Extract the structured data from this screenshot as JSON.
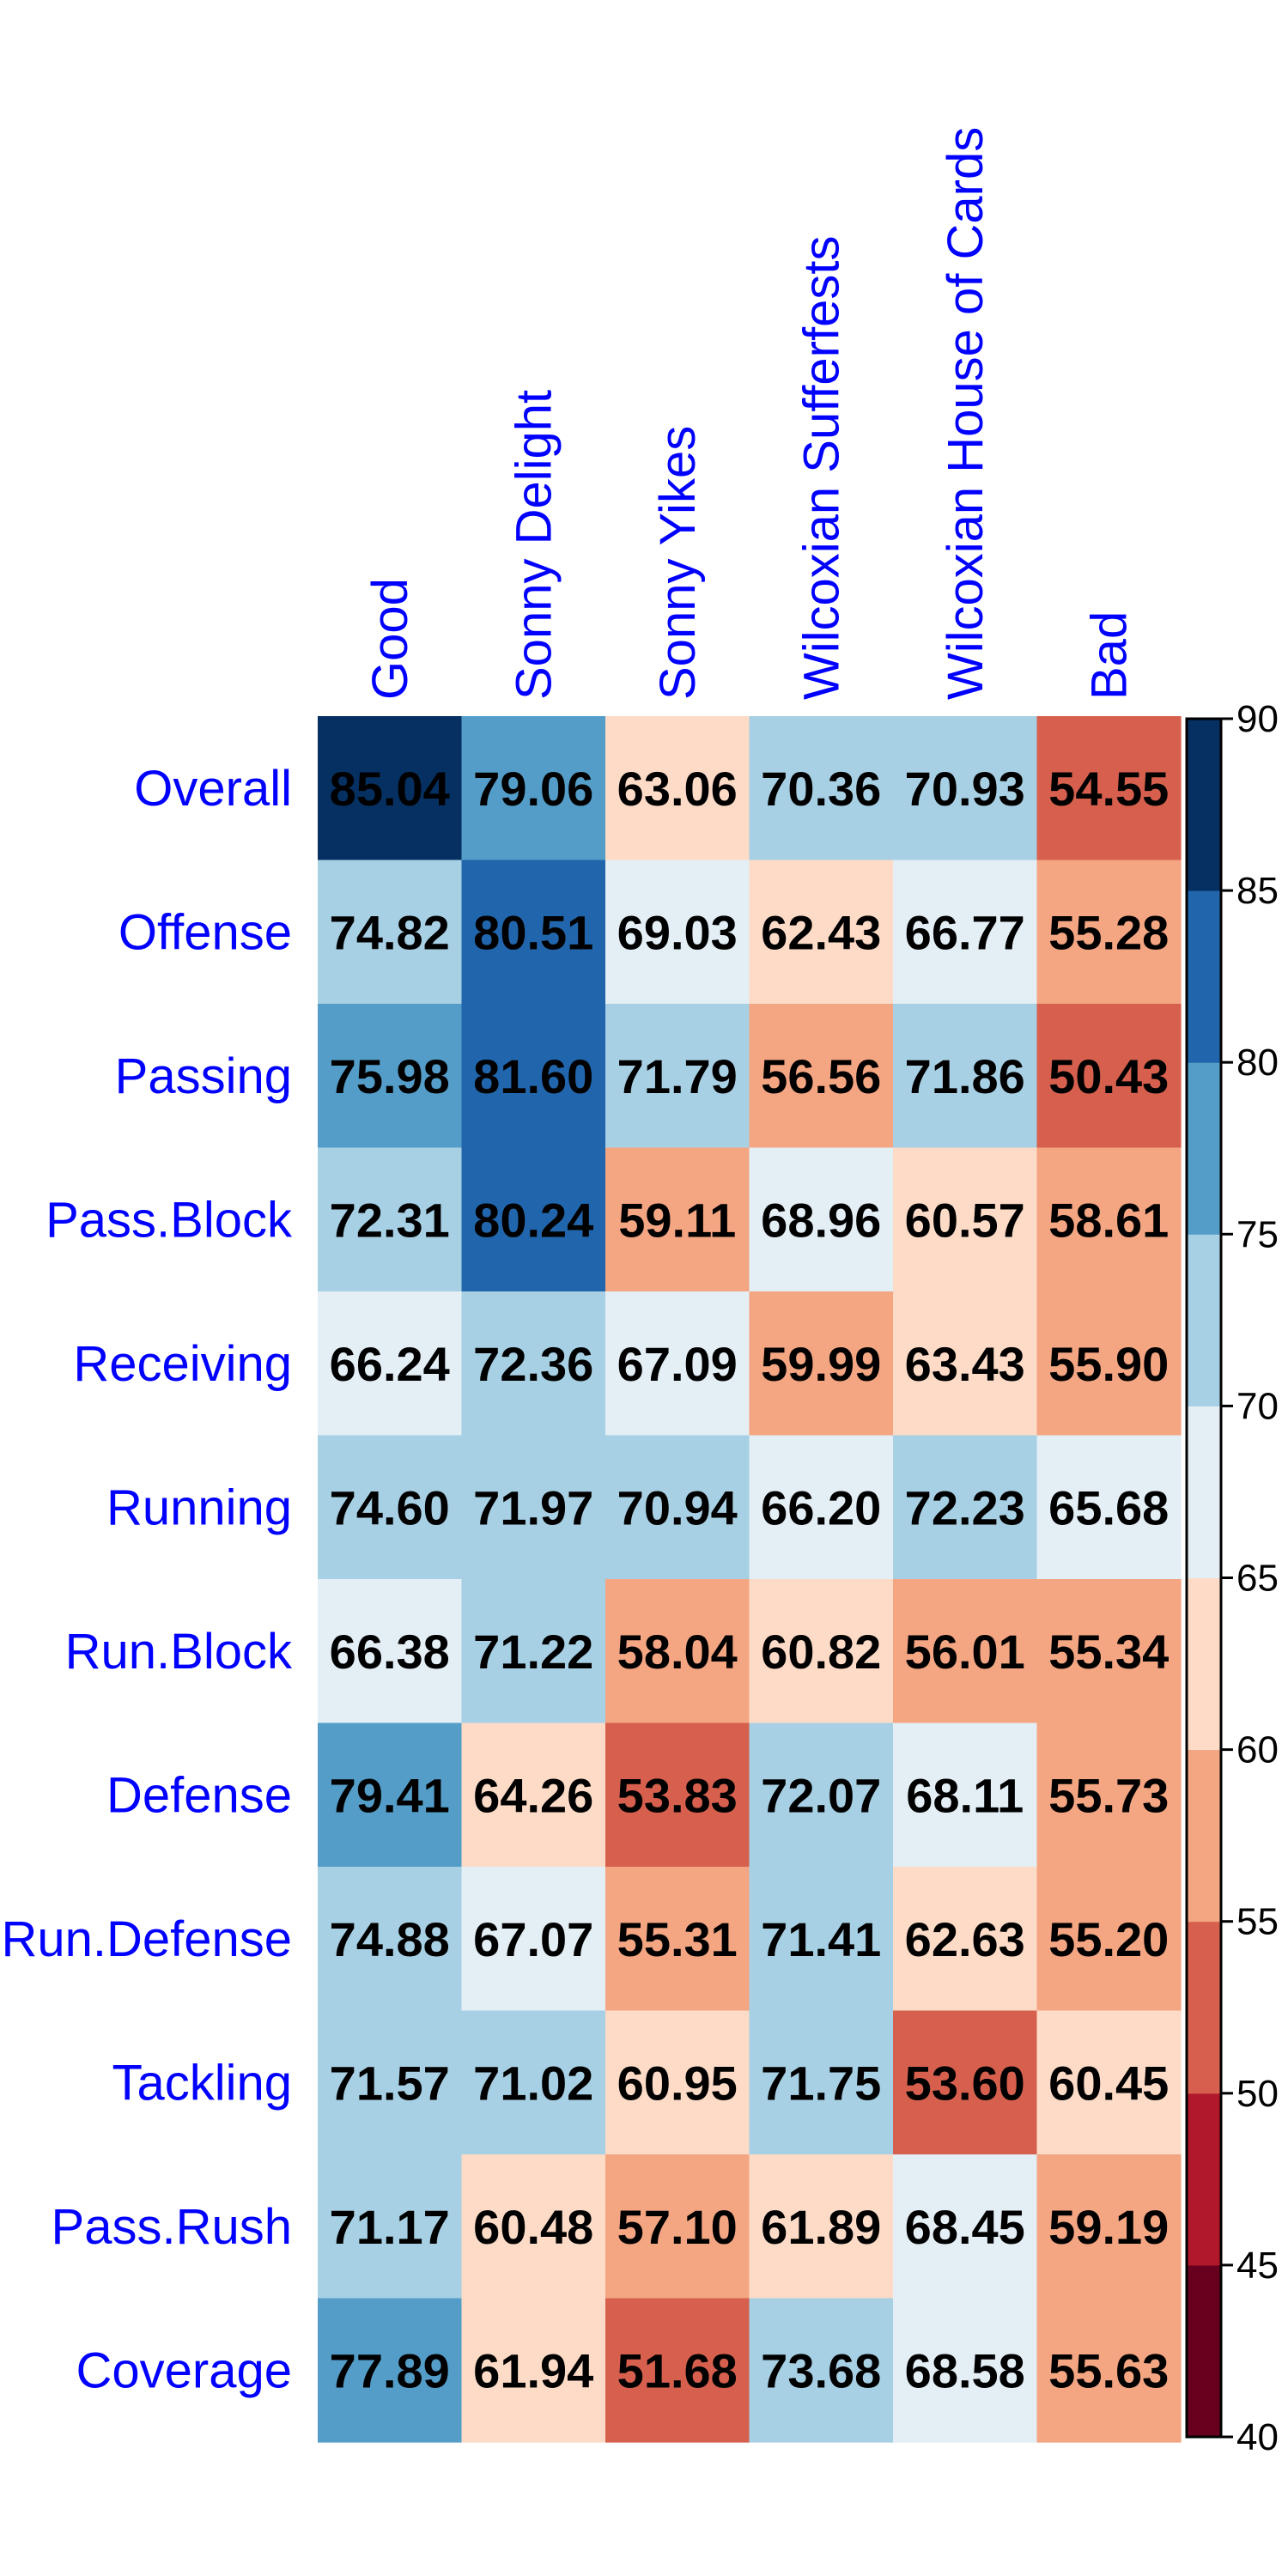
{
  "chart_data": {
    "type": "heatmap",
    "columns": [
      "Good",
      "Sonny Delight",
      "Sonny Yikes",
      "Wilcoxian Sufferfests",
      "Wilcoxian House of Cards",
      "Bad"
    ],
    "rows": [
      "Overall",
      "Offense",
      "Passing",
      "Pass.Block",
      "Receiving",
      "Running",
      "Run.Block",
      "Defense",
      "Run.Defense",
      "Tackling",
      "Pass.Rush",
      "Coverage"
    ],
    "values": [
      [
        85.04,
        79.06,
        63.06,
        70.36,
        70.93,
        54.55
      ],
      [
        74.82,
        80.51,
        69.03,
        62.43,
        66.77,
        55.28
      ],
      [
        75.98,
        81.6,
        71.79,
        56.56,
        71.86,
        50.43
      ],
      [
        72.31,
        80.24,
        59.11,
        68.96,
        60.57,
        58.61
      ],
      [
        66.24,
        72.36,
        67.09,
        59.99,
        63.43,
        55.9
      ],
      [
        74.6,
        71.97,
        70.94,
        66.2,
        72.23,
        65.68
      ],
      [
        66.38,
        71.22,
        58.04,
        60.82,
        56.01,
        55.34
      ],
      [
        79.41,
        64.26,
        53.83,
        72.07,
        68.11,
        55.73
      ],
      [
        74.88,
        67.07,
        55.31,
        71.41,
        62.63,
        55.2
      ],
      [
        71.57,
        71.02,
        60.95,
        71.75,
        53.6,
        60.45
      ],
      [
        71.17,
        60.48,
        57.1,
        61.89,
        68.45,
        59.19
      ],
      [
        77.89,
        61.94,
        51.68,
        73.68,
        68.58,
        55.63
      ]
    ],
    "value_labels": [
      [
        "85.04",
        "79.06",
        "63.06",
        "70.36",
        "70.93",
        "54.55"
      ],
      [
        "74.82",
        "80.51",
        "69.03",
        "62.43",
        "66.77",
        "55.28"
      ],
      [
        "75.98",
        "81.60",
        "71.79",
        "56.56",
        "71.86",
        "50.43"
      ],
      [
        "72.31",
        "80.24",
        "59.11",
        "68.96",
        "60.57",
        "58.61"
      ],
      [
        "66.24",
        "72.36",
        "67.09",
        "59.99",
        "63.43",
        "55.90"
      ],
      [
        "74.60",
        "71.97",
        "70.94",
        "66.20",
        "72.23",
        "65.68"
      ],
      [
        "66.38",
        "71.22",
        "58.04",
        "60.82",
        "56.01",
        "55.34"
      ],
      [
        "79.41",
        "64.26",
        "53.83",
        "72.07",
        "68.11",
        "55.73"
      ],
      [
        "74.88",
        "67.07",
        "55.31",
        "71.41",
        "62.63",
        "55.20"
      ],
      [
        "71.57",
        "71.02",
        "60.95",
        "71.75",
        "53.60",
        "60.45"
      ],
      [
        "71.17",
        "60.48",
        "57.10",
        "61.89",
        "68.45",
        "59.19"
      ],
      [
        "77.89",
        "61.94",
        "51.68",
        "73.68",
        "68.58",
        "55.63"
      ]
    ],
    "colorbar": {
      "range": [
        40,
        90
      ],
      "bins": [
        {
          "min": 40,
          "max": 45,
          "color": "#67001f"
        },
        {
          "min": 45,
          "max": 50,
          "color": "#b2182b"
        },
        {
          "min": 50,
          "max": 55,
          "color": "#d6604d"
        },
        {
          "min": 55,
          "max": 60,
          "color": "#f4a582"
        },
        {
          "min": 60,
          "max": 65,
          "color": "#fddbc7"
        },
        {
          "min": 65,
          "max": 70,
          "color": "#e3eef5"
        },
        {
          "min": 70,
          "max": 75,
          "color": "#a7d0e4"
        },
        {
          "min": 75,
          "max": 80,
          "color": "#539dc8"
        },
        {
          "min": 80,
          "max": 85,
          "color": "#2166ac"
        },
        {
          "min": 85,
          "max": 90,
          "color": "#053061"
        }
      ],
      "tick_labels": [
        "40",
        "45",
        "50",
        "55",
        "60",
        "65",
        "70",
        "75",
        "80",
        "85",
        "90"
      ]
    },
    "label_color": "#0000ff",
    "value_text_color": "#000000"
  }
}
